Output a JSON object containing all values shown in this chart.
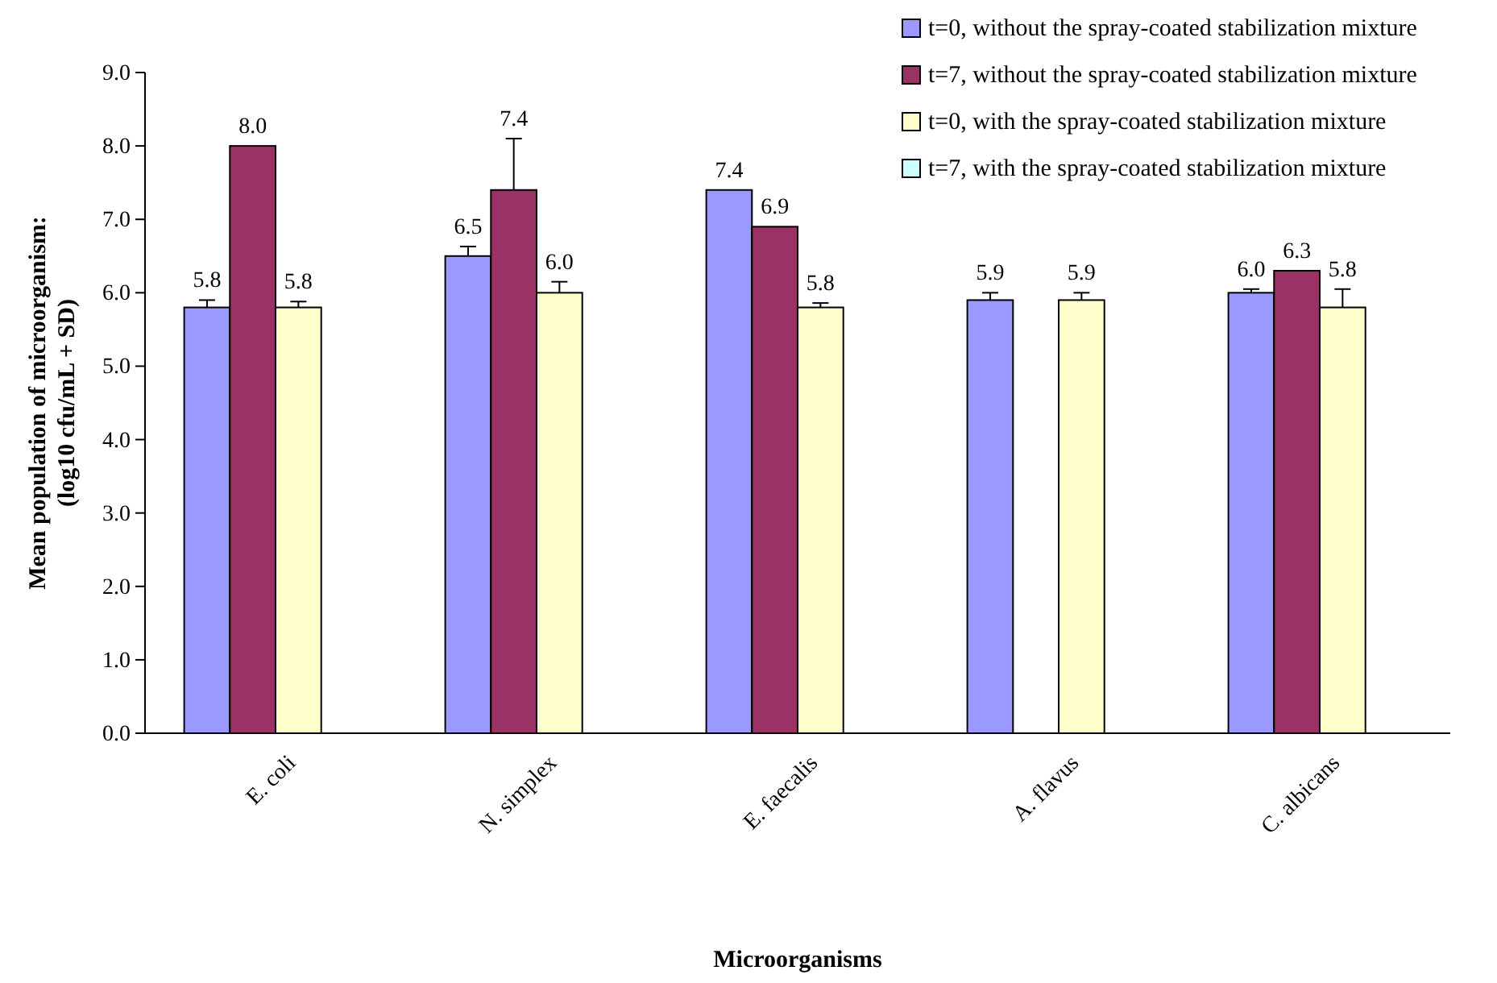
{
  "chart_data": {
    "type": "bar",
    "xlabel": "Microorganisms",
    "ylabel": "Mean population of microorganism: (log10 cfu/mL + SD)",
    "categories": [
      "E. coli",
      "N. simplex",
      "E. faecalis",
      "A. flavus",
      "C. albicans"
    ],
    "series": [
      {
        "name": "t=0, without the spray-coated stabilization mixture",
        "color": "#9999ff",
        "values": [
          5.8,
          6.5,
          7.4,
          5.9,
          6.0
        ],
        "value_labels": [
          "5.8",
          "6.5",
          "7.4",
          "5.9",
          "6.0"
        ],
        "errors": [
          [
            5.8,
            5.9
          ],
          [
            6.5,
            6.63
          ],
          null,
          [
            5.9,
            6.0
          ],
          [
            6.0,
            6.05
          ]
        ]
      },
      {
        "name": "t=7, without the spray-coated stabilization mixture",
        "color": "#993366",
        "values": [
          8.0,
          7.4,
          6.9,
          null,
          6.3
        ],
        "value_labels": [
          "8.0",
          "7.4",
          "6.9",
          null,
          "6.3"
        ],
        "errors": [
          null,
          [
            7.4,
            8.1
          ],
          null,
          null,
          null
        ]
      },
      {
        "name": "t=0, with the spray-coated stabilization mixture",
        "color": "#ffffcc",
        "values": [
          5.8,
          6.0,
          5.8,
          5.9,
          5.8
        ],
        "value_labels": [
          "5.8",
          "6.0",
          "5.8",
          "5.9",
          "5.8"
        ],
        "errors": [
          [
            5.8,
            5.88
          ],
          [
            6.0,
            6.15
          ],
          [
            5.8,
            5.86
          ],
          [
            5.9,
            6.0
          ],
          [
            5.8,
            6.05
          ]
        ]
      },
      {
        "name": "t=7, with the spray-coated stabilization mixture",
        "color": "#ccffff",
        "values": [
          null,
          null,
          null,
          null,
          null
        ]
      }
    ],
    "ylim": [
      0,
      9
    ],
    "yticks": [
      {
        "value": 0,
        "label": "0.0"
      },
      {
        "value": 1,
        "label": "1.0"
      },
      {
        "value": 2,
        "label": "2.0"
      },
      {
        "value": 3,
        "label": "3.0"
      },
      {
        "value": 4,
        "label": "4.0"
      },
      {
        "value": 5,
        "label": "5.0"
      },
      {
        "value": 6,
        "label": "6.0"
      },
      {
        "value": 7,
        "label": "7.0"
      },
      {
        "value": 8,
        "label": "8.0"
      },
      {
        "value": 9,
        "label": "9.0"
      }
    ],
    "legend": "top right",
    "grid": false
  }
}
